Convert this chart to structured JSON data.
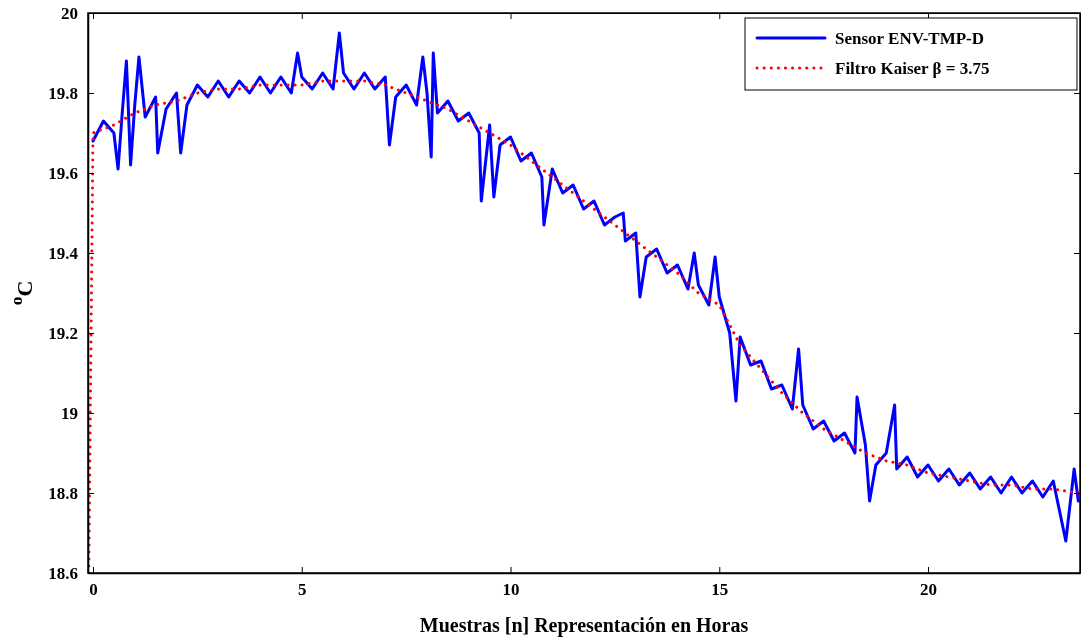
{
  "chart_data": {
    "type": "line",
    "xlabel": "Muestras [n] Representación en Horas",
    "ylabel": "$^{o}$C",
    "xlim": [
      -0.12,
      23.64
    ],
    "xticks": [
      0,
      5,
      10,
      15,
      20
    ],
    "ylim": [
      18.6,
      20
    ],
    "yticks": [
      18.6,
      18.8,
      19,
      19.2,
      19.4,
      19.6,
      19.8,
      20
    ],
    "grid": false,
    "legend": "top right",
    "series": [
      {
        "name": "Sensor ENV-TMP-D",
        "color": "#0000ff",
        "line_style": "solid",
        "x": [
          0,
          0.25,
          0.5,
          0.6,
          0.7,
          0.8,
          0.9,
          1,
          1.1,
          1.25,
          1.5,
          1.55,
          1.75,
          2,
          2.1,
          2.25,
          2.5,
          2.75,
          3,
          3.25,
          3.5,
          3.75,
          4,
          4.25,
          4.5,
          4.75,
          4.9,
          5,
          5.25,
          5.5,
          5.75,
          5.9,
          6,
          6.25,
          6.5,
          6.75,
          7,
          7.1,
          7.25,
          7.5,
          7.75,
          7.9,
          8,
          8.1,
          8.15,
          8.25,
          8.5,
          8.75,
          9,
          9.25,
          9.3,
          9.5,
          9.6,
          9.75,
          10,
          10.25,
          10.5,
          10.75,
          10.8,
          11,
          11.25,
          11.5,
          11.75,
          12,
          12.25,
          12.5,
          12.7,
          12.75,
          13,
          13.1,
          13.25,
          13.5,
          13.75,
          14,
          14.25,
          14.4,
          14.5,
          14.75,
          14.9,
          15,
          15.25,
          15.4,
          15.5,
          15.75,
          16,
          16.25,
          16.5,
          16.75,
          16.9,
          17,
          17.25,
          17.5,
          17.75,
          18,
          18.25,
          18.3,
          18.5,
          18.6,
          18.75,
          19,
          19.2,
          19.25,
          19.5,
          19.75,
          20,
          20.25,
          20.5,
          20.75,
          21,
          21.25,
          21.5,
          21.75,
          22,
          22.25,
          22.5,
          22.75,
          23,
          23.3,
          23.5,
          23.6
        ],
        "values": [
          19.68,
          19.73,
          19.7,
          19.61,
          19.75,
          19.88,
          19.62,
          19.77,
          19.89,
          19.74,
          19.79,
          19.65,
          19.76,
          19.8,
          19.65,
          19.77,
          19.82,
          19.79,
          19.83,
          19.79,
          19.83,
          19.8,
          19.84,
          19.8,
          19.84,
          19.8,
          19.9,
          19.84,
          19.81,
          19.85,
          19.81,
          19.95,
          19.85,
          19.81,
          19.85,
          19.81,
          19.84,
          19.67,
          19.79,
          19.82,
          19.77,
          19.89,
          19.8,
          19.64,
          19.9,
          19.75,
          19.78,
          19.73,
          19.75,
          19.7,
          19.53,
          19.72,
          19.54,
          19.67,
          19.69,
          19.63,
          19.65,
          19.59,
          19.47,
          19.61,
          19.55,
          19.57,
          19.51,
          19.53,
          19.47,
          19.49,
          19.5,
          19.43,
          19.45,
          19.29,
          19.39,
          19.41,
          19.35,
          19.37,
          19.31,
          19.4,
          19.32,
          19.27,
          19.39,
          19.29,
          19.2,
          19.03,
          19.19,
          19.12,
          19.13,
          19.06,
          19.07,
          19.01,
          19.16,
          19.02,
          18.96,
          18.98,
          18.93,
          18.95,
          18.9,
          19.04,
          18.92,
          18.78,
          18.87,
          18.9,
          19.02,
          18.86,
          18.89,
          18.84,
          18.87,
          18.83,
          18.86,
          18.82,
          18.85,
          18.81,
          18.84,
          18.8,
          18.84,
          18.8,
          18.83,
          18.79,
          18.83,
          18.68,
          18.86,
          18.78
        ]
      },
      {
        "name": "Filtro Kaiser β = 3.75",
        "color": "#ff0000",
        "line_style": "dotted",
        "x": [
          -0.1,
          0,
          0.5,
          1,
          1.5,
          2,
          2.5,
          3,
          3.5,
          4,
          4.5,
          5,
          5.5,
          6,
          6.5,
          7,
          7.5,
          8,
          8.5,
          9,
          9.5,
          10,
          10.5,
          11,
          11.5,
          12,
          12.5,
          13,
          13.5,
          14,
          14.5,
          15,
          15.5,
          16,
          16.5,
          17,
          17.5,
          18,
          18.5,
          19,
          19.5,
          20,
          20.5,
          21,
          21.5,
          22,
          22.5,
          23,
          23.6
        ],
        "values": [
          18.6,
          19.7,
          19.72,
          19.75,
          19.77,
          19.78,
          19.8,
          19.81,
          19.81,
          19.82,
          19.82,
          19.82,
          19.83,
          19.83,
          19.83,
          19.82,
          19.8,
          19.78,
          19.76,
          19.73,
          19.7,
          19.67,
          19.63,
          19.59,
          19.55,
          19.51,
          19.47,
          19.43,
          19.39,
          19.35,
          19.3,
          19.27,
          19.17,
          19.11,
          19.05,
          19.0,
          18.96,
          18.93,
          18.9,
          18.88,
          18.87,
          18.85,
          18.84,
          18.83,
          18.82,
          18.82,
          18.81,
          18.81,
          18.8
        ]
      }
    ]
  }
}
